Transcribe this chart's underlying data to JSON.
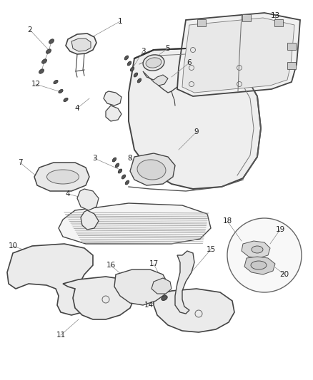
{
  "bg_color": "#ffffff",
  "fig_width": 4.38,
  "fig_height": 5.33,
  "dpi": 100,
  "line_color": "#444444",
  "label_color": "#222222",
  "label_fs": 7.5
}
